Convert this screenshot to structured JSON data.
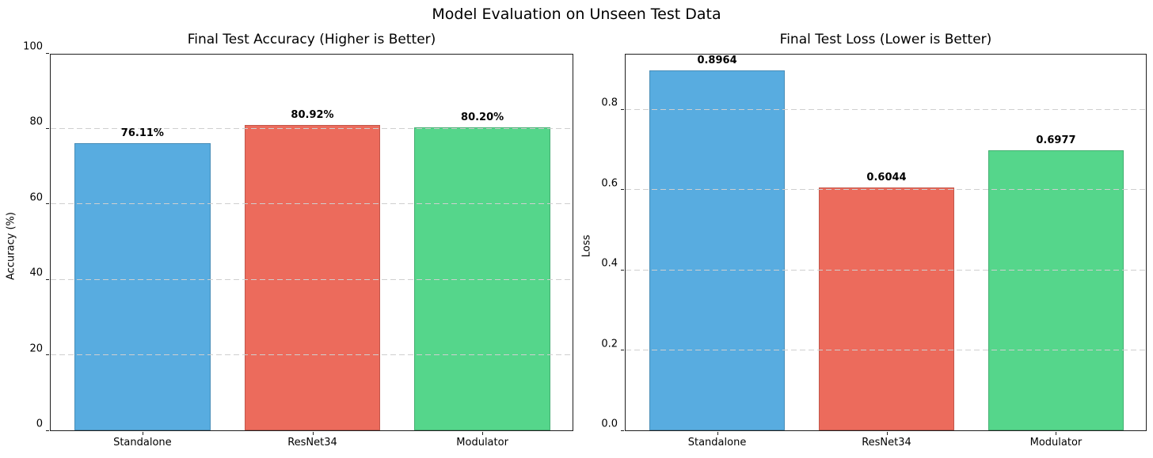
{
  "figure": {
    "suptitle": "Model Evaluation on Unseen Test Data",
    "background": "#ffffff",
    "spine_color": "#1f1f1f",
    "grid_color": "#cfcfcf"
  },
  "chart_data": [
    {
      "type": "bar",
      "title": "Final Test Accuracy (Higher is Better)",
      "xlabel": "",
      "ylabel": "Accuracy (%)",
      "categories": [
        "Standalone",
        "ResNet34",
        "Modulator"
      ],
      "values": [
        76.11,
        80.92,
        80.2
      ],
      "value_labels": [
        "76.11%",
        "80.92%",
        "80.20%"
      ],
      "bar_colors": [
        "#58ACE0",
        "#EC6B5C",
        "#55D68B"
      ],
      "ylim": [
        0,
        100
      ],
      "yticks": [
        0,
        20,
        40,
        60,
        80,
        100
      ],
      "ytick_labels": [
        "0",
        "20",
        "40",
        "60",
        "80",
        "100"
      ],
      "grid": "horizontal-dashed",
      "legend": "none"
    },
    {
      "type": "bar",
      "title": "Final Test Loss (Lower is Better)",
      "xlabel": "",
      "ylabel": "Loss",
      "categories": [
        "Standalone",
        "ResNet34",
        "Modulator"
      ],
      "values": [
        0.8964,
        0.6044,
        0.6977
      ],
      "value_labels": [
        "0.8964",
        "0.6044",
        "0.6977"
      ],
      "bar_colors": [
        "#58ACE0",
        "#EC6B5C",
        "#55D68B"
      ],
      "ylim": [
        0,
        0.94
      ],
      "yticks": [
        0.0,
        0.2,
        0.4,
        0.6,
        0.8
      ],
      "ytick_labels": [
        "0.0",
        "0.2",
        "0.4",
        "0.6",
        "0.8"
      ],
      "grid": "horizontal-dashed",
      "legend": "none"
    }
  ]
}
